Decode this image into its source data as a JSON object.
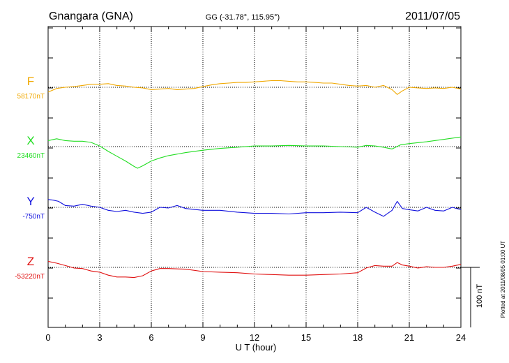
{
  "header": {
    "station": "Gnangara (GNA)",
    "coords": "GG (-31.78°, 115.95°)",
    "date": "2011/07/05"
  },
  "footer": {
    "plotted": "Plotted at 2011/08/05 01:00 UT"
  },
  "scale_bar": {
    "label": "100 nT"
  },
  "chart_data": {
    "type": "line",
    "xlabel": "U T (hour)",
    "xlim": [
      0,
      24
    ],
    "xticks": [
      "0",
      "3",
      "6",
      "9",
      "12",
      "15",
      "18",
      "21",
      "24"
    ],
    "grid": true,
    "series": [
      {
        "name": "F",
        "baseline": "58170nT",
        "color": "#f0a800",
        "x": [
          0,
          0.5,
          1,
          1.5,
          2,
          2.5,
          3,
          3.5,
          4,
          4.5,
          5,
          5.5,
          6,
          6.5,
          7,
          7.5,
          8,
          8.5,
          9,
          9.5,
          10,
          10.5,
          11,
          11.5,
          12,
          12.5,
          13,
          13.5,
          14,
          14.5,
          15,
          15.5,
          16,
          16.5,
          17,
          17.5,
          18,
          18.5,
          19,
          19.5,
          20,
          20.3,
          20.6,
          21,
          21.5,
          22,
          22.5,
          23,
          23.5,
          24
        ],
        "y": [
          -8,
          -2,
          0,
          1,
          3,
          5,
          5,
          6,
          3,
          2,
          0,
          -1,
          -4,
          -3,
          -2,
          -4,
          -3,
          -2,
          1,
          4,
          6,
          7,
          8,
          8,
          9,
          10,
          11,
          11,
          10,
          9,
          9,
          8,
          7,
          7,
          5,
          3,
          2,
          3,
          0,
          3,
          -4,
          -12,
          -6,
          0,
          -1,
          -2,
          -1,
          -2,
          0,
          -3
        ]
      },
      {
        "name": "X",
        "baseline": "23460nT",
        "color": "#22dd22",
        "x": [
          0,
          0.5,
          1,
          1.5,
          2,
          2.5,
          3,
          3.5,
          4,
          4.5,
          5,
          5.2,
          5.5,
          6,
          6.5,
          7,
          8,
          9,
          10,
          11,
          12,
          13,
          14,
          15,
          16,
          17,
          18,
          18.5,
          19,
          19.5,
          20,
          20.5,
          21,
          22,
          23,
          24
        ],
        "y": [
          10,
          13,
          10,
          9,
          9,
          7,
          1,
          -8,
          -16,
          -24,
          -33,
          -36,
          -32,
          -24,
          -19,
          -15,
          -10,
          -6,
          -3,
          -1,
          1,
          1,
          2,
          1,
          1,
          0,
          -1,
          2,
          1,
          -1,
          -4,
          3,
          5,
          8,
          12,
          16
        ]
      },
      {
        "name": "Y",
        "baseline": "-750nT",
        "color": "#1010dd",
        "x": [
          0,
          0.3,
          0.6,
          1,
          1.5,
          2,
          2.5,
          3,
          3.5,
          4,
          4.5,
          5,
          5.5,
          6,
          6.5,
          7,
          7.5,
          8,
          9,
          10,
          11,
          12,
          13,
          14,
          15,
          16,
          17,
          18,
          18.5,
          19,
          19.5,
          20,
          20.3,
          20.6,
          21,
          21.5,
          22,
          22.5,
          23,
          23.5,
          24
        ],
        "y": [
          13,
          12,
          10,
          3,
          2,
          5,
          2,
          0,
          -5,
          -7,
          -5,
          -8,
          -10,
          -8,
          0,
          -1,
          3,
          -2,
          -5,
          -5,
          -8,
          -10,
          -10,
          -11,
          -9,
          -9,
          -8,
          -9,
          0,
          -8,
          -15,
          -5,
          10,
          -2,
          -4,
          -6,
          0,
          -5,
          -6,
          0,
          -4
        ]
      },
      {
        "name": "Z",
        "baseline": "-53220nT",
        "color": "#e01010",
        "x": [
          0,
          0.5,
          1,
          1.5,
          2,
          2.5,
          3,
          3.5,
          4,
          4.5,
          5,
          5.5,
          6,
          6.5,
          7,
          8,
          9,
          10,
          11,
          12,
          13,
          14,
          15,
          16,
          17,
          18,
          18.5,
          19,
          19.5,
          20,
          20.3,
          20.6,
          21,
          21.5,
          22,
          22.5,
          23,
          23.5,
          24
        ],
        "y": [
          10,
          7,
          3,
          -1,
          -2,
          -6,
          -8,
          -13,
          -16,
          -16,
          -17,
          -14,
          -6,
          -2,
          -2,
          -3,
          -7,
          -8,
          -9,
          -11,
          -12,
          -13,
          -13,
          -12,
          -11,
          -9,
          -1,
          3,
          2,
          2,
          8,
          4,
          2,
          -1,
          1,
          0,
          0,
          2,
          5
        ]
      }
    ]
  }
}
